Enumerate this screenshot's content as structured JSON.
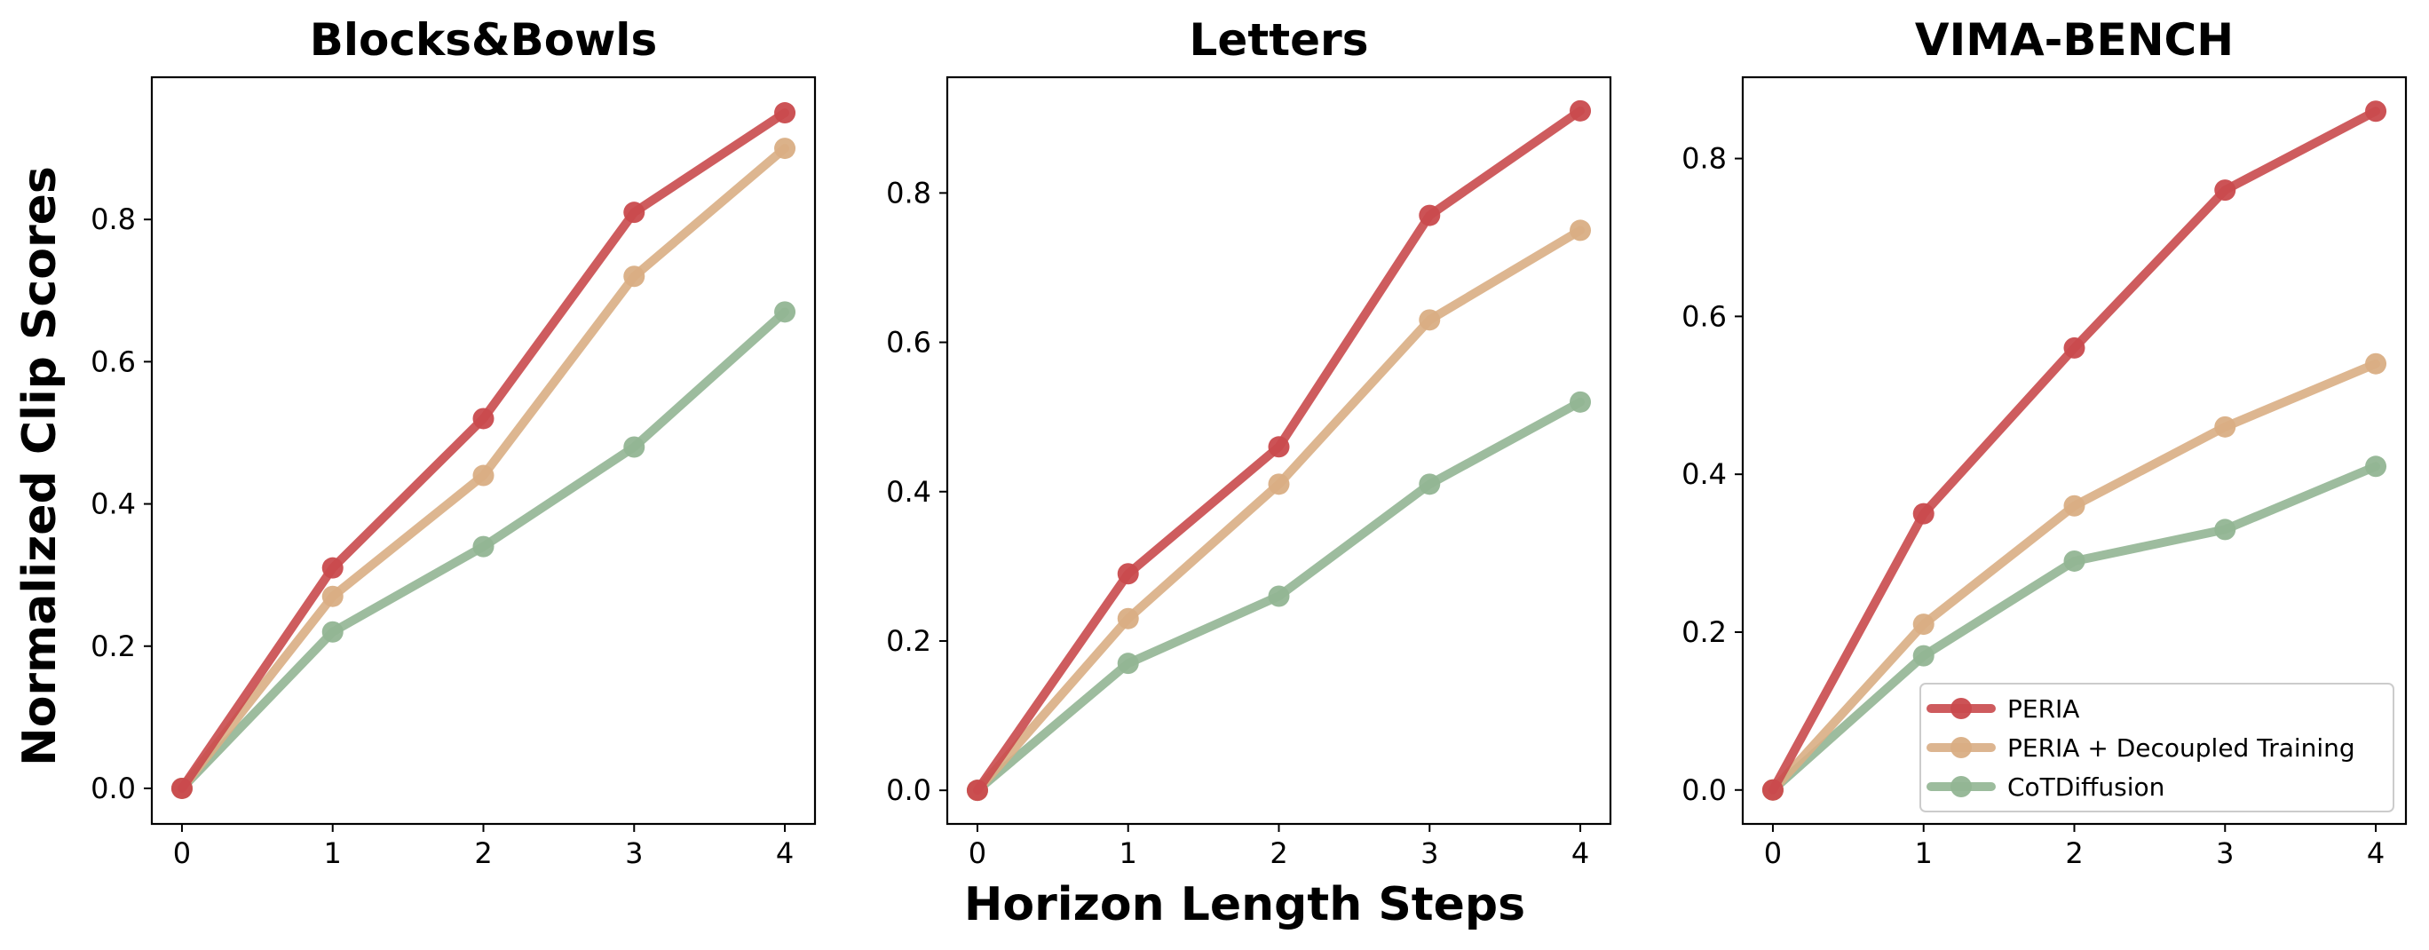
{
  "chart_data": {
    "type": "line",
    "xlabel": "Horizon Length Steps",
    "ylabel": "Normalized Clip Scores",
    "x": [
      0,
      1,
      2,
      3,
      4
    ],
    "legend": {
      "placement": "lower-right",
      "panel": 2,
      "entries": [
        "PERIA",
        "PERIA + Decoupled Training",
        "CoTDiffusion"
      ]
    },
    "colors": {
      "PERIA": "#c94a4d",
      "PERIA + Decoupled Training": "#d9ae84",
      "CoTDiffusion": "#92b593"
    },
    "grid": false,
    "panels": [
      {
        "title": "Blocks&Bowls",
        "ylim": [
          -0.05,
          1.0
        ],
        "yticks": [
          "0.0",
          "0.2",
          "0.4",
          "0.6",
          "0.8"
        ],
        "xticks": [
          "0",
          "1",
          "2",
          "3",
          "4"
        ],
        "series": [
          {
            "name": "PERIA",
            "values": [
              0.0,
              0.31,
              0.52,
              0.81,
              0.95
            ]
          },
          {
            "name": "PERIA + Decoupled Training",
            "values": [
              0.0,
              0.27,
              0.44,
              0.72,
              0.9
            ]
          },
          {
            "name": "CoTDiffusion",
            "values": [
              0.0,
              0.22,
              0.34,
              0.48,
              0.67
            ]
          }
        ]
      },
      {
        "title": "Letters",
        "ylim": [
          -0.045,
          0.955
        ],
        "yticks": [
          "0.0",
          "0.2",
          "0.4",
          "0.6",
          "0.8"
        ],
        "xticks": [
          "0",
          "1",
          "2",
          "3",
          "4"
        ],
        "series": [
          {
            "name": "PERIA",
            "values": [
              0.0,
              0.29,
              0.46,
              0.77,
              0.91
            ]
          },
          {
            "name": "PERIA + Decoupled Training",
            "values": [
              0.0,
              0.23,
              0.41,
              0.63,
              0.75
            ]
          },
          {
            "name": "CoTDiffusion",
            "values": [
              0.0,
              0.17,
              0.26,
              0.41,
              0.52
            ]
          }
        ]
      },
      {
        "title": "VIMA-BENCH",
        "ylim": [
          -0.043,
          0.903
        ],
        "yticks": [
          "0.0",
          "0.2",
          "0.4",
          "0.6",
          "0.8"
        ],
        "xticks": [
          "0",
          "1",
          "2",
          "3",
          "4"
        ],
        "series": [
          {
            "name": "PERIA",
            "values": [
              0.0,
              0.35,
              0.56,
              0.76,
              0.86
            ]
          },
          {
            "name": "PERIA + Decoupled Training",
            "values": [
              0.0,
              0.21,
              0.36,
              0.46,
              0.54
            ]
          },
          {
            "name": "CoTDiffusion",
            "values": [
              0.0,
              0.17,
              0.29,
              0.33,
              0.41
            ]
          }
        ]
      }
    ]
  }
}
